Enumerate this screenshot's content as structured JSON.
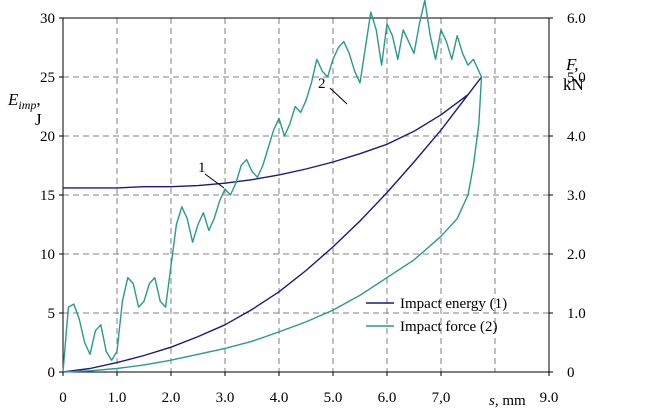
{
  "chart_data": {
    "type": "line",
    "x_axis": {
      "label_var": "s",
      "label_unit": ", mm",
      "range": [
        0,
        9
      ],
      "tick_labels": [
        "0",
        "1.0",
        "2.0",
        "3.0",
        "4.0",
        "5.0",
        "6.0",
        "7,0",
        "9.0"
      ]
    },
    "y_left": {
      "label_var": "E",
      "label_sub": "imp",
      "label_suffix": ",",
      "label_unit": "J",
      "range": [
        0,
        30
      ],
      "ticks": [
        0,
        5,
        10,
        15,
        20,
        25,
        30
      ]
    },
    "y_right": {
      "label_var": "F,",
      "label_unit": "kN",
      "range": [
        0,
        6
      ],
      "tick_labels": [
        "0",
        "1.0",
        "2.0",
        "3.0",
        "4.0",
        "5.0",
        "6.0"
      ]
    },
    "grid": true,
    "legend": {
      "placement": "bottom-right",
      "entries": [
        "Impact energy (1)",
        "Impact force (2)"
      ]
    },
    "callouts": [
      "1",
      "2"
    ],
    "series": [
      {
        "name": "Impact energy (1)",
        "color": "#1a1a7e",
        "axis": "left",
        "x": [
          0,
          0.5,
          1.0,
          1.5,
          2.0,
          2.5,
          3.0,
          3.5,
          4.0,
          4.5,
          5.0,
          5.5,
          6.0,
          6.5,
          7.0,
          7.5,
          7.75
        ],
        "y": [
          0,
          0.3,
          0.8,
          1.4,
          2.1,
          3.0,
          4.0,
          5.3,
          6.8,
          8.6,
          10.6,
          12.8,
          15.2,
          17.8,
          20.5,
          23.5,
          25.0
        ],
        "x_return": [
          7.75,
          7.5,
          7.0,
          6.5,
          6.0,
          5.5,
          5.0,
          4.5,
          4.0,
          3.5,
          3.0,
          2.5,
          2.0,
          1.5,
          1.0,
          0.5,
          0
        ],
        "y_return": [
          25.0,
          23.5,
          21.8,
          20.4,
          19.3,
          18.5,
          17.8,
          17.2,
          16.7,
          16.3,
          16.0,
          15.8,
          15.7,
          15.7,
          15.6,
          15.6,
          15.6
        ]
      },
      {
        "name": "Impact force (2)",
        "color": "#2a9a8e",
        "axis": "right",
        "x": [
          0,
          0.1,
          0.2,
          0.3,
          0.4,
          0.5,
          0.6,
          0.7,
          0.8,
          0.9,
          1.0,
          1.1,
          1.2,
          1.3,
          1.4,
          1.5,
          1.6,
          1.7,
          1.8,
          1.9,
          2.0,
          2.1,
          2.2,
          2.3,
          2.4,
          2.5,
          2.6,
          2.7,
          2.8,
          2.9,
          3.0,
          3.1,
          3.2,
          3.3,
          3.4,
          3.5,
          3.6,
          3.7,
          3.8,
          3.9,
          4.0,
          4.1,
          4.2,
          4.3,
          4.4,
          4.5,
          4.6,
          4.7,
          4.8,
          4.9,
          5.0,
          5.1,
          5.2,
          5.3,
          5.4,
          5.5,
          5.6,
          5.7,
          5.8,
          5.9,
          6.0,
          6.1,
          6.2,
          6.3,
          6.4,
          6.5,
          6.6,
          6.7,
          6.8,
          6.9,
          7.0,
          7.1,
          7.2,
          7.3,
          7.4,
          7.5,
          7.6,
          7.7,
          7.75
        ],
        "y": [
          0,
          1.1,
          1.15,
          0.9,
          0.5,
          0.3,
          0.7,
          0.8,
          0.35,
          0.2,
          0.35,
          1.2,
          1.6,
          1.5,
          1.1,
          1.2,
          1.5,
          1.6,
          1.2,
          1.1,
          1.8,
          2.5,
          2.8,
          2.6,
          2.2,
          2.5,
          2.7,
          2.4,
          2.6,
          2.9,
          3.1,
          3.0,
          3.2,
          3.5,
          3.6,
          3.4,
          3.3,
          3.5,
          3.8,
          4.1,
          4.3,
          4.0,
          4.2,
          4.5,
          4.4,
          4.6,
          4.9,
          5.3,
          5.1,
          5.0,
          5.3,
          5.5,
          5.6,
          5.4,
          5.1,
          4.9,
          5.5,
          6.1,
          5.8,
          5.2,
          5.9,
          5.7,
          5.3,
          5.8,
          5.6,
          5.4,
          5.9,
          6.3,
          5.7,
          5.3,
          5.8,
          5.6,
          5.3,
          5.7,
          5.4,
          5.2,
          5.3,
          5.1,
          5.0
        ],
        "x_return": [
          7.75,
          7.7,
          7.6,
          7.5,
          7.3,
          7.0,
          6.5,
          6.0,
          5.5,
          5.0,
          4.5,
          4.0,
          3.5,
          3.0,
          2.5,
          2.0,
          1.5,
          1.0,
          0.5,
          0
        ],
        "y_return": [
          5.0,
          4.2,
          3.5,
          3.0,
          2.6,
          2.3,
          1.9,
          1.6,
          1.3,
          1.05,
          0.85,
          0.68,
          0.52,
          0.4,
          0.3,
          0.2,
          0.12,
          0.06,
          0.02,
          0
        ]
      }
    ]
  }
}
